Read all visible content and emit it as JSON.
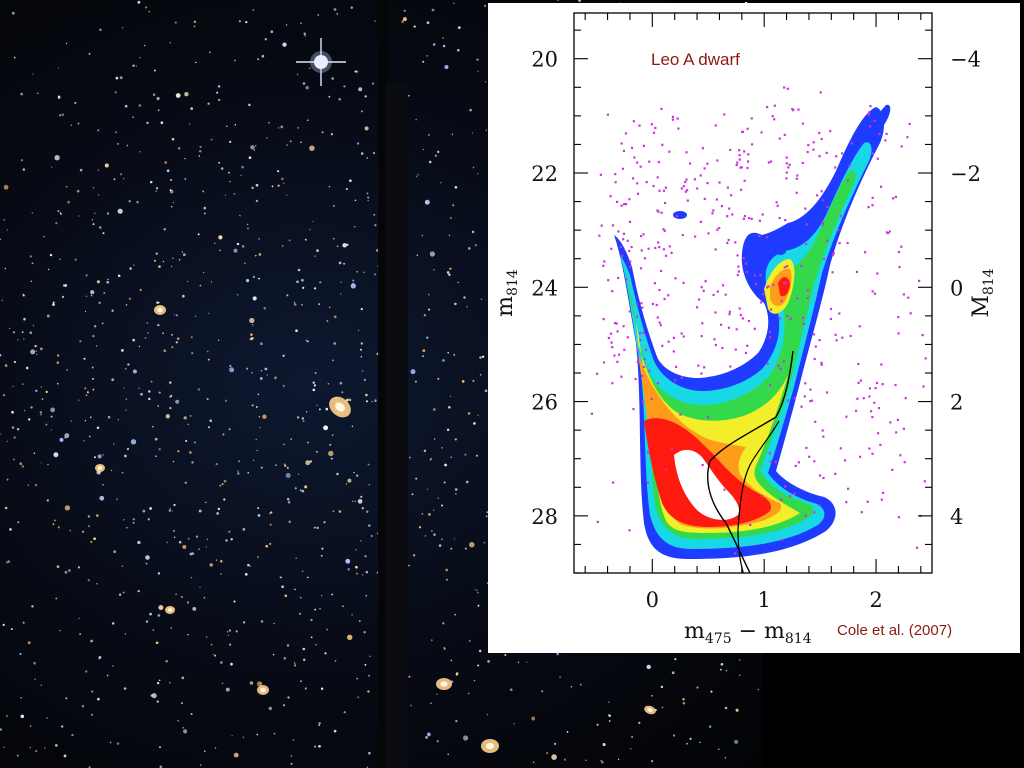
{
  "image": {
    "description_icon": "galaxy-photo",
    "inset": "cmd-plot"
  },
  "chart_data": {
    "type": "scatter",
    "subtype": "color-magnitude diagram with density contours",
    "title": "Leo A dwarf",
    "credit": "Cole et al. (2007)",
    "xlabel": "m475 − m814",
    "ylabel": "m814",
    "y2label": "M814",
    "xlim": [
      -0.7,
      2.5
    ],
    "ylim": [
      29.0,
      19.2
    ],
    "x_ticks": [
      "0",
      "1",
      "2"
    ],
    "y_ticks": [
      "20",
      "22",
      "24",
      "26",
      "28"
    ],
    "y2_ticks": [
      "−4",
      "−2",
      "0",
      "2",
      "4"
    ],
    "contour_levels": [
      "blue",
      "cyan",
      "green",
      "yellow",
      "orange",
      "red",
      "white"
    ],
    "contour_colors": [
      "#1f3bff",
      "#19d8e6",
      "#33d94a",
      "#f2ee2a",
      "#ff9d1a",
      "#ff1a10",
      "#ffffff"
    ],
    "scatter_color": "#cc33dd",
    "isochrone_color": "#000000",
    "legend": "none",
    "grid": false
  }
}
